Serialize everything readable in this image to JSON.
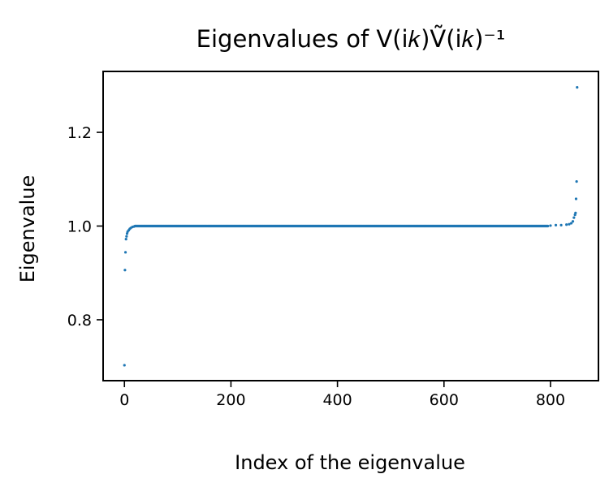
{
  "chart_data": {
    "type": "scatter",
    "title": "Eigenvalues of V(i𝑘)Ṽ(i𝑘)⁻¹",
    "xlabel": "Index of the eigenvalue",
    "ylabel": "Eigenvalue",
    "xlim": [
      -40,
      890
    ],
    "ylim": [
      0.67,
      1.33
    ],
    "xticks": [
      0,
      200,
      400,
      600,
      800
    ],
    "yticks": [
      0.8,
      1.0,
      1.2
    ],
    "xtick_labels": [
      "0",
      "200",
      "400",
      "600",
      "800"
    ],
    "ytick_labels": [
      "0.8",
      "1.0",
      "1.2"
    ],
    "marker_color": "#1f77b4",
    "grid": false,
    "legend": "none",
    "n_points": 851,
    "low_tail": [
      {
        "x": 0,
        "y": 0.703
      },
      {
        "x": 1,
        "y": 0.906
      },
      {
        "x": 2,
        "y": 0.944
      },
      {
        "x": 3,
        "y": 0.972
      },
      {
        "x": 4,
        "y": 0.978
      },
      {
        "x": 5,
        "y": 0.984
      },
      {
        "x": 6,
        "y": 0.988
      },
      {
        "x": 8,
        "y": 0.991
      },
      {
        "x": 10,
        "y": 0.994
      },
      {
        "x": 12,
        "y": 0.996
      },
      {
        "x": 15,
        "y": 0.998
      },
      {
        "x": 18,
        "y": 0.999
      }
    ],
    "bulk": {
      "x_start": 20,
      "x_end": 795,
      "y": 1.0
    },
    "high_tail": [
      {
        "x": 800,
        "y": 1.001
      },
      {
        "x": 810,
        "y": 1.002
      },
      {
        "x": 820,
        "y": 1.002
      },
      {
        "x": 830,
        "y": 1.003
      },
      {
        "x": 835,
        "y": 1.004
      },
      {
        "x": 839,
        "y": 1.006
      },
      {
        "x": 842,
        "y": 1.01
      },
      {
        "x": 844,
        "y": 1.018
      },
      {
        "x": 846,
        "y": 1.024
      },
      {
        "x": 847,
        "y": 1.028
      },
      {
        "x": 848,
        "y": 1.058
      },
      {
        "x": 849,
        "y": 1.095
      },
      {
        "x": 850,
        "y": 1.296
      }
    ]
  }
}
